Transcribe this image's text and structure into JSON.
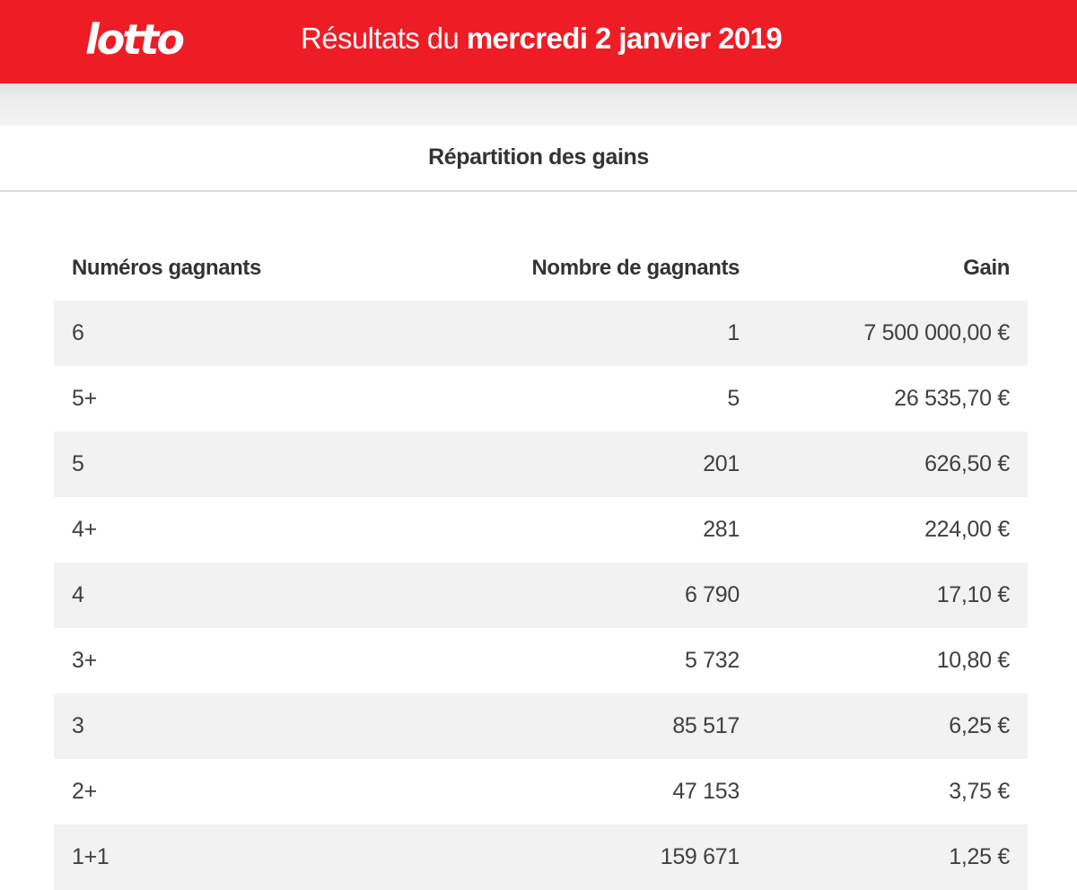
{
  "header": {
    "logo_text": "lotto",
    "title_prefix": "Résultats du",
    "title_date": "mercredi 2 janvier 2019",
    "background_color": "#ee1c25"
  },
  "section": {
    "title": "Répartition des gains"
  },
  "table": {
    "columns": [
      "Numéros gagnants",
      "Nombre de gagnants",
      "Gain"
    ],
    "rows": [
      {
        "numbers": "6",
        "winners": "1",
        "gain": "7 500 000,00 €"
      },
      {
        "numbers": "5+",
        "winners": "5",
        "gain": "26 535,70 €"
      },
      {
        "numbers": "5",
        "winners": "201",
        "gain": "626,50 €"
      },
      {
        "numbers": "4+",
        "winners": "281",
        "gain": "224,00 €"
      },
      {
        "numbers": "4",
        "winners": "6 790",
        "gain": "17,10 €"
      },
      {
        "numbers": "3+",
        "winners": "5 732",
        "gain": "10,80 €"
      },
      {
        "numbers": "3",
        "winners": "85 517",
        "gain": "6,25 €"
      },
      {
        "numbers": "2+",
        "winners": "47 153",
        "gain": "3,75 €"
      },
      {
        "numbers": "1+1",
        "winners": "159 671",
        "gain": "1,25 €"
      }
    ]
  }
}
